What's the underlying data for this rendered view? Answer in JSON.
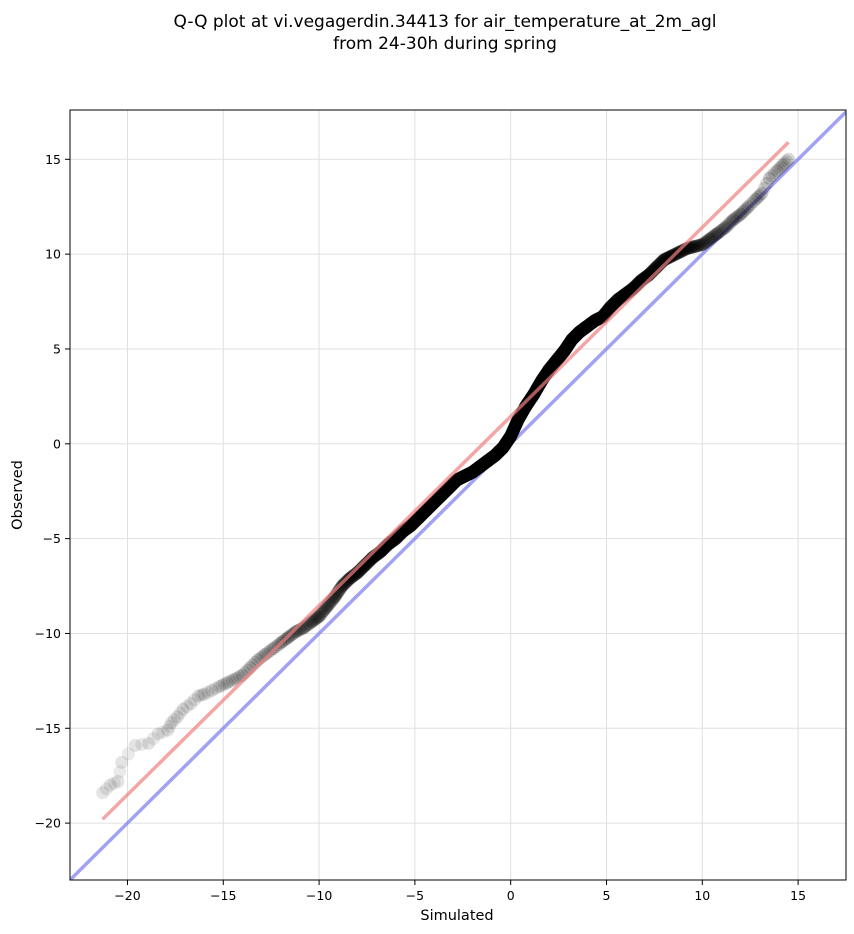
{
  "chart_data": {
    "type": "scatter",
    "title": [
      "Q-Q plot at vi.vegagerdin.34413 for air_temperature_at_2m_agl",
      "from 24-30h during spring"
    ],
    "xlabel": "Simulated",
    "ylabel": "Observed",
    "xlim": [
      -23,
      17.5
    ],
    "ylim": [
      -23,
      17.6
    ],
    "xticks": [
      -20,
      -15,
      -10,
      -5,
      0,
      5,
      10,
      15
    ],
    "yticks": [
      -20,
      -15,
      -10,
      -5,
      0,
      5,
      10,
      15
    ],
    "xtick_labels": [
      "−20",
      "−15",
      "−10",
      "−5",
      "0",
      "5",
      "10",
      "15"
    ],
    "ytick_labels": [
      "−20",
      "−15",
      "−10",
      "−5",
      "0",
      "5",
      "10",
      "15"
    ],
    "grid": true,
    "colors": {
      "points": "#000000",
      "fit_line": "#f08080",
      "identity_line": "#7b7bf0",
      "grid": "#e0e0e0"
    },
    "series": [
      {
        "kind": "quantiles",
        "points": [
          [
            -21.3,
            -18.4
          ],
          [
            -20.9,
            -18.0
          ],
          [
            -20.5,
            -17.8
          ],
          [
            -20.3,
            -16.8
          ],
          [
            -19.6,
            -15.9
          ],
          [
            -18.9,
            -15.8
          ],
          [
            -18.4,
            -15.3
          ],
          [
            -17.9,
            -15.1
          ],
          [
            -17.7,
            -14.7
          ],
          [
            -17.4,
            -14.4
          ],
          [
            -17.1,
            -14.0
          ],
          [
            -16.7,
            -13.7
          ],
          [
            -16.3,
            -13.3
          ],
          [
            -16.0,
            -13.2
          ],
          [
            -15.6,
            -13.0
          ],
          [
            -15.2,
            -12.8
          ],
          [
            -14.8,
            -12.6
          ],
          [
            -14.4,
            -12.4
          ],
          [
            -14.0,
            -12.2
          ],
          [
            -13.6,
            -11.8
          ],
          [
            -13.2,
            -11.4
          ],
          [
            -12.8,
            -11.1
          ],
          [
            -12.4,
            -10.8
          ],
          [
            -12.0,
            -10.5
          ],
          [
            -11.6,
            -10.2
          ],
          [
            -11.2,
            -9.9
          ],
          [
            -10.8,
            -9.7
          ],
          [
            -10.4,
            -9.4
          ],
          [
            -10.0,
            -9.1
          ],
          [
            -9.6,
            -8.6
          ],
          [
            -9.2,
            -8.1
          ],
          [
            -8.8,
            -7.5
          ],
          [
            -8.4,
            -7.1
          ],
          [
            -8.0,
            -6.8
          ],
          [
            -7.6,
            -6.4
          ],
          [
            -7.2,
            -6.0
          ],
          [
            -6.8,
            -5.7
          ],
          [
            -6.4,
            -5.3
          ],
          [
            -6.0,
            -5.0
          ],
          [
            -5.6,
            -4.6
          ],
          [
            -5.2,
            -4.3
          ],
          [
            -4.8,
            -3.9
          ],
          [
            -4.4,
            -3.5
          ],
          [
            -4.0,
            -3.1
          ],
          [
            -3.6,
            -2.7
          ],
          [
            -3.2,
            -2.3
          ],
          [
            -2.8,
            -1.9
          ],
          [
            -2.4,
            -1.7
          ],
          [
            -2.0,
            -1.5
          ],
          [
            -1.6,
            -1.2
          ],
          [
            -1.2,
            -0.9
          ],
          [
            -0.8,
            -0.6
          ],
          [
            -0.4,
            -0.2
          ],
          [
            0.0,
            0.4
          ],
          [
            0.4,
            1.3
          ],
          [
            0.8,
            2.0
          ],
          [
            1.2,
            2.6
          ],
          [
            1.6,
            3.3
          ],
          [
            2.0,
            3.9
          ],
          [
            2.4,
            4.4
          ],
          [
            2.8,
            4.9
          ],
          [
            3.2,
            5.5
          ],
          [
            3.6,
            5.9
          ],
          [
            4.0,
            6.2
          ],
          [
            4.4,
            6.5
          ],
          [
            4.8,
            6.7
          ],
          [
            5.2,
            7.2
          ],
          [
            5.6,
            7.6
          ],
          [
            6.0,
            7.9
          ],
          [
            6.4,
            8.2
          ],
          [
            6.8,
            8.6
          ],
          [
            7.2,
            8.9
          ],
          [
            7.6,
            9.3
          ],
          [
            8.0,
            9.7
          ],
          [
            8.4,
            9.9
          ],
          [
            8.8,
            10.1
          ],
          [
            9.2,
            10.3
          ],
          [
            9.6,
            10.4
          ],
          [
            10.0,
            10.5
          ],
          [
            10.4,
            10.8
          ],
          [
            10.8,
            11.1
          ],
          [
            11.2,
            11.4
          ],
          [
            11.6,
            11.8
          ],
          [
            12.0,
            12.1
          ],
          [
            12.4,
            12.5
          ],
          [
            12.8,
            12.9
          ],
          [
            13.1,
            13.2
          ],
          [
            13.5,
            14.0
          ],
          [
            13.9,
            14.4
          ],
          [
            14.2,
            14.7
          ],
          [
            14.5,
            15.0
          ]
        ]
      },
      {
        "kind": "fit_line",
        "x": [
          -21.3,
          14.5
        ],
        "y": [
          -19.8,
          15.9
        ]
      },
      {
        "kind": "identity_line",
        "x": [
          -23,
          17.5
        ],
        "y": [
          -23,
          17.5
        ]
      }
    ]
  }
}
